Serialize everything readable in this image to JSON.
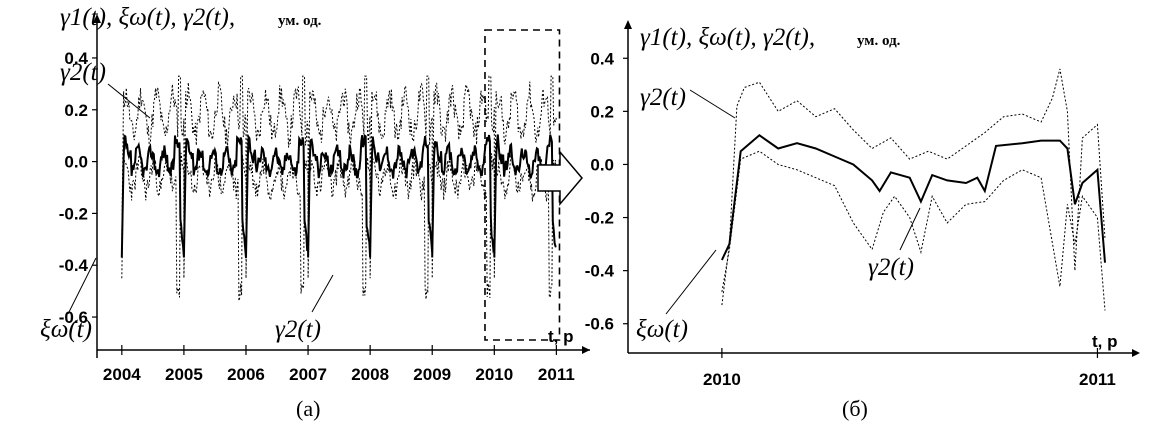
{
  "chart_data": [
    {
      "panel": "(а)",
      "type": "line",
      "title_formula": "γ1(t), ξω(t), γ2(t),",
      "units": "ум. од.",
      "xlabel": "t, р",
      "xlim": [
        2003.6,
        2011.3
      ],
      "ylim": [
        -0.65,
        0.45
      ],
      "y_ticks": [
        "0.4",
        "0.2",
        "0.0",
        "-0.2",
        "-0.4",
        "-0.6"
      ],
      "x_ticks": [
        "2004",
        "2005",
        "2006",
        "2007",
        "2008",
        "2009",
        "2010",
        "2011"
      ],
      "annotations": [
        "γ2(t)",
        "ξω(t)",
        "γ2(t)"
      ],
      "highlight_box": [
        2009.85,
        2011.05
      ],
      "series": [
        {
          "name": "γ1(t)",
          "description": "upper dotted",
          "values": "annual cycle, peak ≈ 0.33 at start of each year, base ≈ 0.15 mid-year"
        },
        {
          "name": "ξω(t)",
          "description": "solid",
          "values": "annual cycle, -0.37 at year start, ≈ 0.08 plateau, dips to -0.35 at year end"
        },
        {
          "name": "γ2(t)",
          "description": "lower dotted",
          "values": "annual cycle, ≈ -0.05 plateau, dips to -0.55 near year end"
        }
      ]
    },
    {
      "panel": "(б)",
      "type": "line",
      "title_formula": "γ1(t), ξω(t), γ2(t),",
      "units": "ум. од.",
      "xlabel": "t, р",
      "xlim": [
        2009.75,
        2011.1
      ],
      "ylim": [
        -0.65,
        0.45
      ],
      "y_ticks": [
        "0.4",
        "0.2",
        "0.0",
        "-0.2",
        "-0.4",
        "-0.6"
      ],
      "x_ticks": [
        "2010",
        "2011"
      ],
      "annotations": [
        "γ2(t)",
        "γ2(t)",
        "ξω(t)"
      ],
      "series": [
        {
          "name": "ξω(t)",
          "x": [
            2010.0,
            2010.02,
            2010.05,
            2010.1,
            2010.15,
            2010.2,
            2010.25,
            2010.3,
            2010.35,
            2010.4,
            2010.42,
            2010.45,
            2010.5,
            2010.53,
            2010.56,
            2010.6,
            2010.65,
            2010.68,
            2010.7,
            2010.73,
            2010.8,
            2010.85,
            2010.9,
            2010.92,
            2010.94,
            2010.96,
            2011.0,
            2011.02
          ],
          "y": [
            -0.36,
            -0.3,
            0.05,
            0.11,
            0.06,
            0.08,
            0.06,
            0.03,
            0.0,
            -0.06,
            -0.1,
            -0.03,
            -0.05,
            -0.14,
            -0.04,
            -0.06,
            -0.07,
            -0.05,
            -0.1,
            0.07,
            0.08,
            0.09,
            0.09,
            0.06,
            -0.15,
            -0.07,
            -0.02,
            -0.37
          ]
        },
        {
          "name": "γ1(t)",
          "x": [
            2010.0,
            2010.02,
            2010.04,
            2010.06,
            2010.1,
            2010.15,
            2010.2,
            2010.25,
            2010.3,
            2010.35,
            2010.4,
            2010.45,
            2010.5,
            2010.55,
            2010.6,
            2010.65,
            2010.7,
            2010.75,
            2010.8,
            2010.85,
            2010.88,
            2010.9,
            2010.92,
            2010.94,
            2010.96,
            2011.0,
            2011.02
          ],
          "y": [
            -0.53,
            -0.3,
            0.22,
            0.29,
            0.31,
            0.2,
            0.24,
            0.18,
            0.21,
            0.13,
            0.06,
            0.1,
            0.02,
            0.05,
            0.02,
            0.07,
            0.12,
            0.18,
            0.19,
            0.16,
            0.25,
            0.36,
            0.2,
            -0.4,
            0.1,
            0.15,
            -0.28
          ]
        },
        {
          "name": "γ2(t)",
          "x": [
            2010.0,
            2010.02,
            2010.05,
            2010.1,
            2010.15,
            2010.2,
            2010.25,
            2010.3,
            2010.35,
            2010.4,
            2010.43,
            2010.46,
            2010.5,
            2010.53,
            2010.56,
            2010.6,
            2010.65,
            2010.7,
            2010.75,
            2010.8,
            2010.85,
            2010.9,
            2010.92,
            2010.94,
            2010.96,
            2011.0,
            2011.02
          ],
          "y": [
            -0.48,
            -0.32,
            0.02,
            0.05,
            0.0,
            -0.02,
            -0.05,
            -0.08,
            -0.22,
            -0.32,
            -0.18,
            -0.12,
            -0.2,
            -0.33,
            -0.12,
            -0.22,
            -0.15,
            -0.14,
            -0.06,
            -0.02,
            -0.05,
            -0.46,
            -0.15,
            -0.3,
            -0.12,
            -0.2,
            -0.55
          ]
        }
      ]
    }
  ],
  "captions": [
    "(а)",
    "(б)"
  ]
}
